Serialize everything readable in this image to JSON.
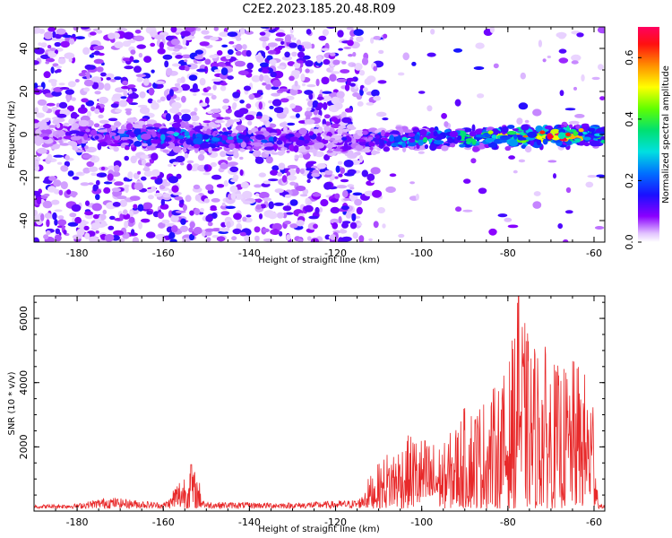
{
  "title": "C2E2.2023.185.20.48.R09",
  "chart_data": [
    {
      "type": "heatmap",
      "title": "C2E2.2023.185.20.48.R09",
      "xlabel": "Height of straight line (km)",
      "ylabel": "Frequency (Hz)",
      "xlim": [
        -190,
        -57.5
      ],
      "ylim": [
        -50,
        50
      ],
      "x_ticks": [
        "-180",
        "-160",
        "-140",
        "-120",
        "-100",
        "-80",
        "-60"
      ],
      "y_ticks": [
        "-40",
        "-20",
        "0",
        "20",
        "40"
      ],
      "colorbar": {
        "label": "Normalized spectral amplitude",
        "range": [
          0,
          0.7
        ],
        "ticks": [
          "0.0",
          "0.2",
          "0.4",
          "0.6"
        ]
      },
      "ridge": {
        "description_points": [
          {
            "x": -190,
            "freq": 0
          },
          {
            "x": -120,
            "freq": -3
          },
          {
            "x": -60,
            "freq": 0
          }
        ],
        "peak_amplitude_at_x": [
          {
            "x": -190,
            "amp": 0.08
          },
          {
            "x": -155,
            "amp": 0.3
          },
          {
            "x": -120,
            "amp": 0.12
          },
          {
            "x": -100,
            "amp": 0.35
          },
          {
            "x": -80,
            "amp": 0.5
          },
          {
            "x": -68,
            "amp": 0.7
          },
          {
            "x": -60,
            "amp": 0.45
          }
        ]
      },
      "grid": false
    },
    {
      "type": "line",
      "xlabel": "Height of straight line (km)",
      "ylabel": "SNR (10 * v/v)",
      "xlim": [
        -190,
        -57.5
      ],
      "ylim": [
        0,
        6700
      ],
      "x_ticks": [
        "-180",
        "-160",
        "-140",
        "-120",
        "-100",
        "-80",
        "-60"
      ],
      "y_ticks": [
        "2000",
        "4000",
        "6000"
      ],
      "color": "#e8292a",
      "envelope": [
        {
          "x": -190,
          "y": 200
        },
        {
          "x": -180,
          "y": 250
        },
        {
          "x": -173,
          "y": 600
        },
        {
          "x": -160,
          "y": 300
        },
        {
          "x": -153.5,
          "y": 1450
        },
        {
          "x": -150,
          "y": 350
        },
        {
          "x": -130,
          "y": 300
        },
        {
          "x": -115,
          "y": 450
        },
        {
          "x": -108,
          "y": 1800
        },
        {
          "x": -102,
          "y": 2400
        },
        {
          "x": -95,
          "y": 2000
        },
        {
          "x": -90,
          "y": 3200
        },
        {
          "x": -85,
          "y": 3500
        },
        {
          "x": -80,
          "y": 4400
        },
        {
          "x": -77.5,
          "y": 6700
        },
        {
          "x": -75,
          "y": 5300
        },
        {
          "x": -72,
          "y": 5200
        },
        {
          "x": -68,
          "y": 4400
        },
        {
          "x": -64,
          "y": 4700
        },
        {
          "x": -60,
          "y": 3800
        },
        {
          "x": -59,
          "y": 200
        }
      ],
      "grid": false
    }
  ]
}
